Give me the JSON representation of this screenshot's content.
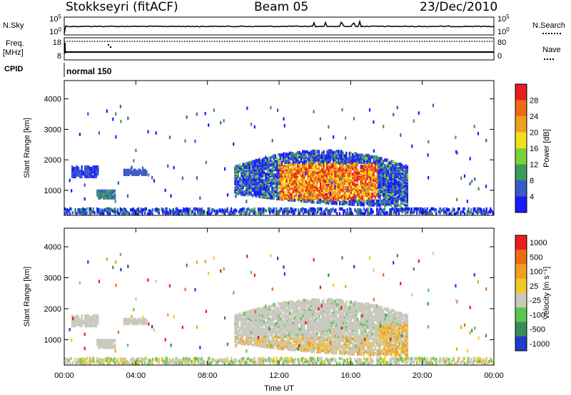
{
  "header": {
    "site": "Stokkseyri (fitACF)",
    "beam": "Beam 05",
    "date": "23/Dec/2010"
  },
  "info_panels": {
    "nsky_label": "N.Sky",
    "nsearch_label": "N.Search",
    "freq_label_line1": "Freq.",
    "freq_label_line2": "[MHz]",
    "nave_label": "Nave",
    "cpid_label": "CPID",
    "cpid_text": "normal 150",
    "noise_ticks": [
      "10^5",
      "10^0"
    ],
    "noise_ticks_right": [
      "10^5",
      "10^0"
    ],
    "freq_ticks": [
      "18",
      "8"
    ],
    "nave_ticks": [
      "80",
      "0"
    ]
  },
  "chart_data": [
    {
      "type": "heatmap",
      "name": "power",
      "ylabel": "Slant Range [km]",
      "yticks": [
        1000,
        2000,
        3000,
        4000
      ],
      "ylim": [
        180,
        4600
      ],
      "xlim": [
        0,
        24
      ],
      "colorbar_label": "Power [dB]",
      "colorbar_ticks": [
        "4",
        "8",
        "12",
        "16",
        "20",
        "24",
        "28"
      ],
      "colorbar_colors": [
        "#1a1aff",
        "#3a5ac8",
        "#3a9a5a",
        "#7ad23a",
        "#f0e21e",
        "#f0a01e",
        "#ef6a14",
        "#e61e1e"
      ]
    },
    {
      "type": "heatmap",
      "name": "velocity",
      "ylabel": "Slant Range [km]",
      "yticks": [
        1000,
        2000,
        3000,
        4000
      ],
      "ylim": [
        180,
        4600
      ],
      "xlim": [
        0,
        24
      ],
      "colorbar_label": "Velocity [m s⁻¹]",
      "colorbar_ticks": [
        "1000",
        "500",
        "100",
        "25",
        "-25",
        "-100",
        "-500",
        "-1000"
      ],
      "colorbar_colors": [
        "#1e3ccd",
        "#3a8a5a",
        "#5ac850",
        "#c8c8be",
        "#f0c828",
        "#f0a01e",
        "#ef6a14",
        "#e61e1e"
      ]
    }
  ],
  "xaxis": {
    "ticks": [
      "00:00",
      "04:00",
      "08:00",
      "12:00",
      "16:00",
      "20:00",
      "00:00"
    ],
    "label": "Time UT"
  }
}
